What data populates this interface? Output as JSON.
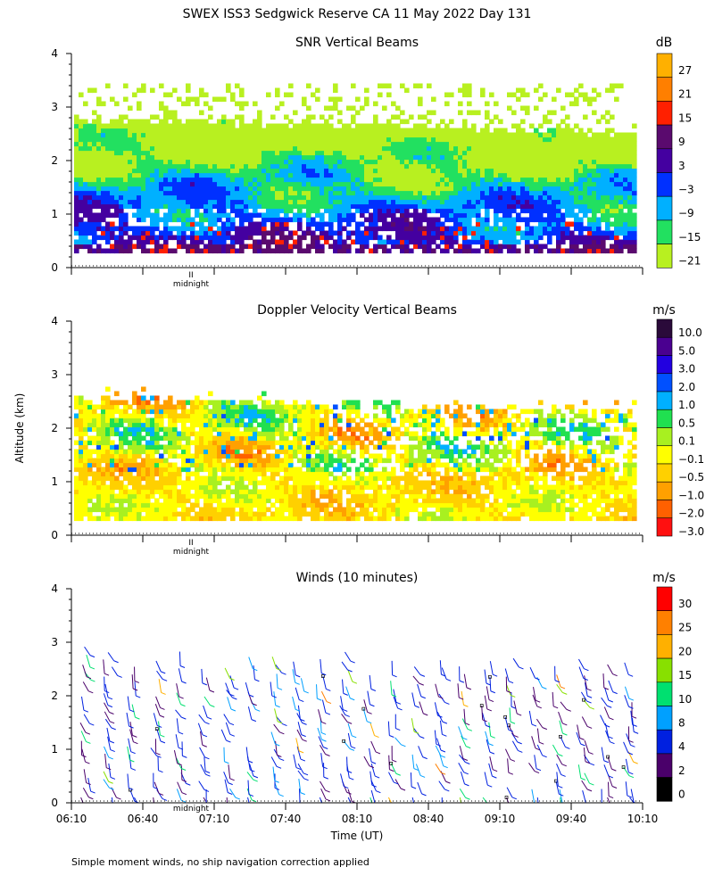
{
  "figure_title": "SWEX ISS3 Sedgwick Reserve CA  11 May 2022 Day 131",
  "footer_note": "Simple moment winds, no ship navigation correction applied",
  "shared": {
    "ylabel": "Altitude (km)",
    "xlabel": "Time (UT)",
    "x_tick_labels": [
      "06:10",
      "06:40",
      "07:10",
      "07:40",
      "08:10",
      "08:40",
      "09:10",
      "09:40",
      "10:10"
    ],
    "midnight_label": "midnight",
    "midnight_marker": "II"
  },
  "chart_data": [
    {
      "type": "heatmap",
      "title": "SNR Vertical Beams",
      "ylim": [
        0,
        4
      ],
      "y_tick_labels": [
        "0",
        "1",
        "2",
        "3",
        "4"
      ],
      "colorbar": {
        "unit": "dB",
        "labels": [
          "27",
          "21",
          "15",
          "9",
          "3",
          "−3",
          "−9",
          "−15",
          "−21"
        ],
        "colors": [
          "#ffb000",
          "#ff7f00",
          "#ff2000",
          "#5a0a6e",
          "#4400a0",
          "#0030ff",
          "#00b0ff",
          "#22e060",
          "#b8f020"
        ]
      }
    },
    {
      "type": "heatmap",
      "title": "Doppler Velocity Vertical Beams",
      "ylim": [
        0,
        4
      ],
      "y_tick_labels": [
        "0",
        "1",
        "2",
        "3",
        "4"
      ],
      "colorbar": {
        "unit": "m/s",
        "labels": [
          "10.0",
          "5.0",
          "3.0",
          "2.0",
          "1.0",
          "0.5",
          "0.1",
          "−0.1",
          "−0.5",
          "−1.0",
          "−2.0",
          "−3.0"
        ],
        "colors": [
          "#2a0a3a",
          "#4a0090",
          "#2200e0",
          "#0050ff",
          "#00b0ff",
          "#20e050",
          "#a8f020",
          "#ffff00",
          "#ffd000",
          "#ffa000",
          "#ff6000",
          "#ff1010"
        ]
      }
    },
    {
      "type": "scatter",
      "title": "Winds (10 minutes)",
      "ylim": [
        0,
        4
      ],
      "y_tick_labels": [
        "0",
        "1",
        "2",
        "3",
        "4"
      ],
      "colorbar": {
        "unit": "m/s",
        "labels": [
          "30",
          "25",
          "20",
          "15",
          "10",
          "8",
          "4",
          "2",
          "0"
        ],
        "colors": [
          "#ff0000",
          "#ff8000",
          "#ffb000",
          "#88e000",
          "#00e070",
          "#00a0ff",
          "#0020e0",
          "#4a006a",
          "#000000"
        ]
      }
    }
  ]
}
